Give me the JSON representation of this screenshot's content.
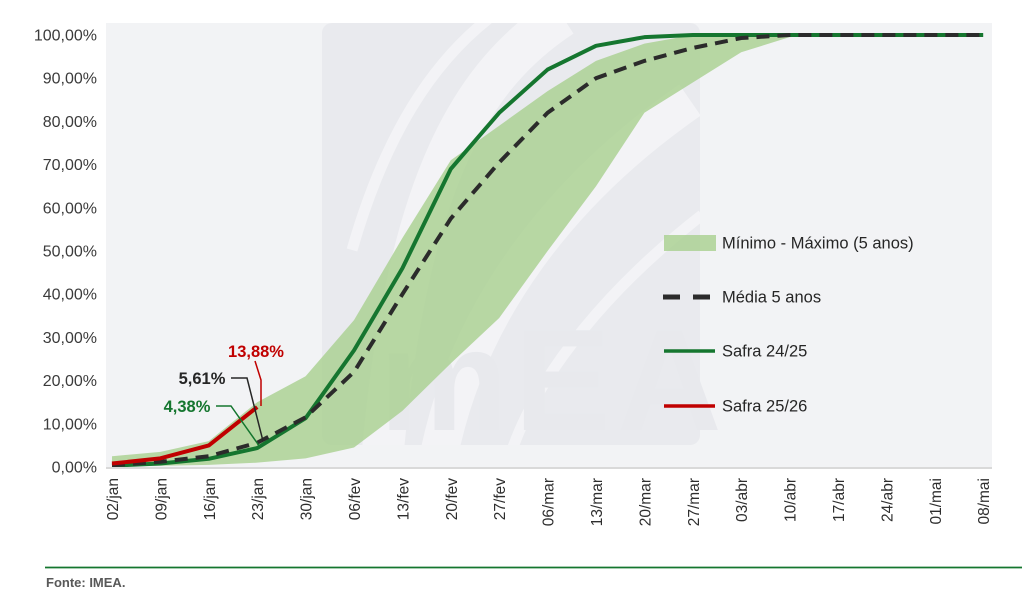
{
  "chart_data": {
    "type": "area",
    "title": "",
    "categories": [
      "02/jan",
      "09/jan",
      "16/jan",
      "23/jan",
      "30/jan",
      "06/fev",
      "13/fev",
      "20/fev",
      "27/fev",
      "06/mar",
      "13/mar",
      "20/mar",
      "27/mar",
      "03/abr",
      "10/abr",
      "17/abr",
      "24/abr",
      "01/mai",
      "08/mai"
    ],
    "y_ticks": [
      "100,00%",
      "90,00%",
      "80,00%",
      "70,00%",
      "60,00%",
      "50,00%",
      "40,00%",
      "30,00%",
      "20,00%",
      "10,00%",
      "0,00%"
    ],
    "ylim": [
      0,
      100
    ],
    "grid": false,
    "legend_position": "right-inside",
    "series": [
      {
        "name": "Mínimo - Máximo (5 anos)",
        "type": "band",
        "color": "#a8cf8e",
        "max": [
          2.5,
          3.5,
          6,
          15,
          21,
          34,
          53,
          71,
          79,
          87,
          94,
          98,
          100,
          100,
          100,
          100,
          100,
          100,
          100
        ],
        "min": [
          0.2,
          0.3,
          0.5,
          1,
          2,
          4.5,
          13,
          24,
          34.5,
          50,
          65,
          82,
          89,
          96,
          99.5,
          100,
          100,
          100,
          100
        ]
      },
      {
        "name": "Média 5 anos",
        "type": "dashed-line",
        "color": "#2b2b2b",
        "values": [
          0.4,
          1.2,
          2.5,
          5.61,
          11.5,
          22,
          40,
          57.5,
          70.5,
          82,
          90,
          94,
          97,
          99.3,
          100,
          100,
          100,
          100,
          100
        ]
      },
      {
        "name": "Safra 24/25",
        "type": "line",
        "color": "#15762f",
        "values": [
          0.3,
          0.8,
          1.9,
          4.38,
          11.3,
          27,
          46,
          69,
          82,
          92,
          97.5,
          99.5,
          100,
          100,
          100,
          100,
          100,
          100,
          100
        ]
      },
      {
        "name": "Safra 25/26",
        "type": "line",
        "color": "#c00000",
        "values": [
          0.8,
          2,
          5,
          13.88
        ]
      }
    ],
    "annotations": [
      {
        "text": "13,88%",
        "color": "#c00000",
        "series": "Safra 25/26",
        "point_index": 3
      },
      {
        "text": "5,61%",
        "color": "#262626",
        "series": "Média 5 anos",
        "point_index": 3
      },
      {
        "text": "4,38%",
        "color": "#15762f",
        "series": "Safra 24/25",
        "point_index": 3
      }
    ],
    "watermark": "ImEA"
  },
  "footer": {
    "source_label": "Fonte: IMEA."
  }
}
